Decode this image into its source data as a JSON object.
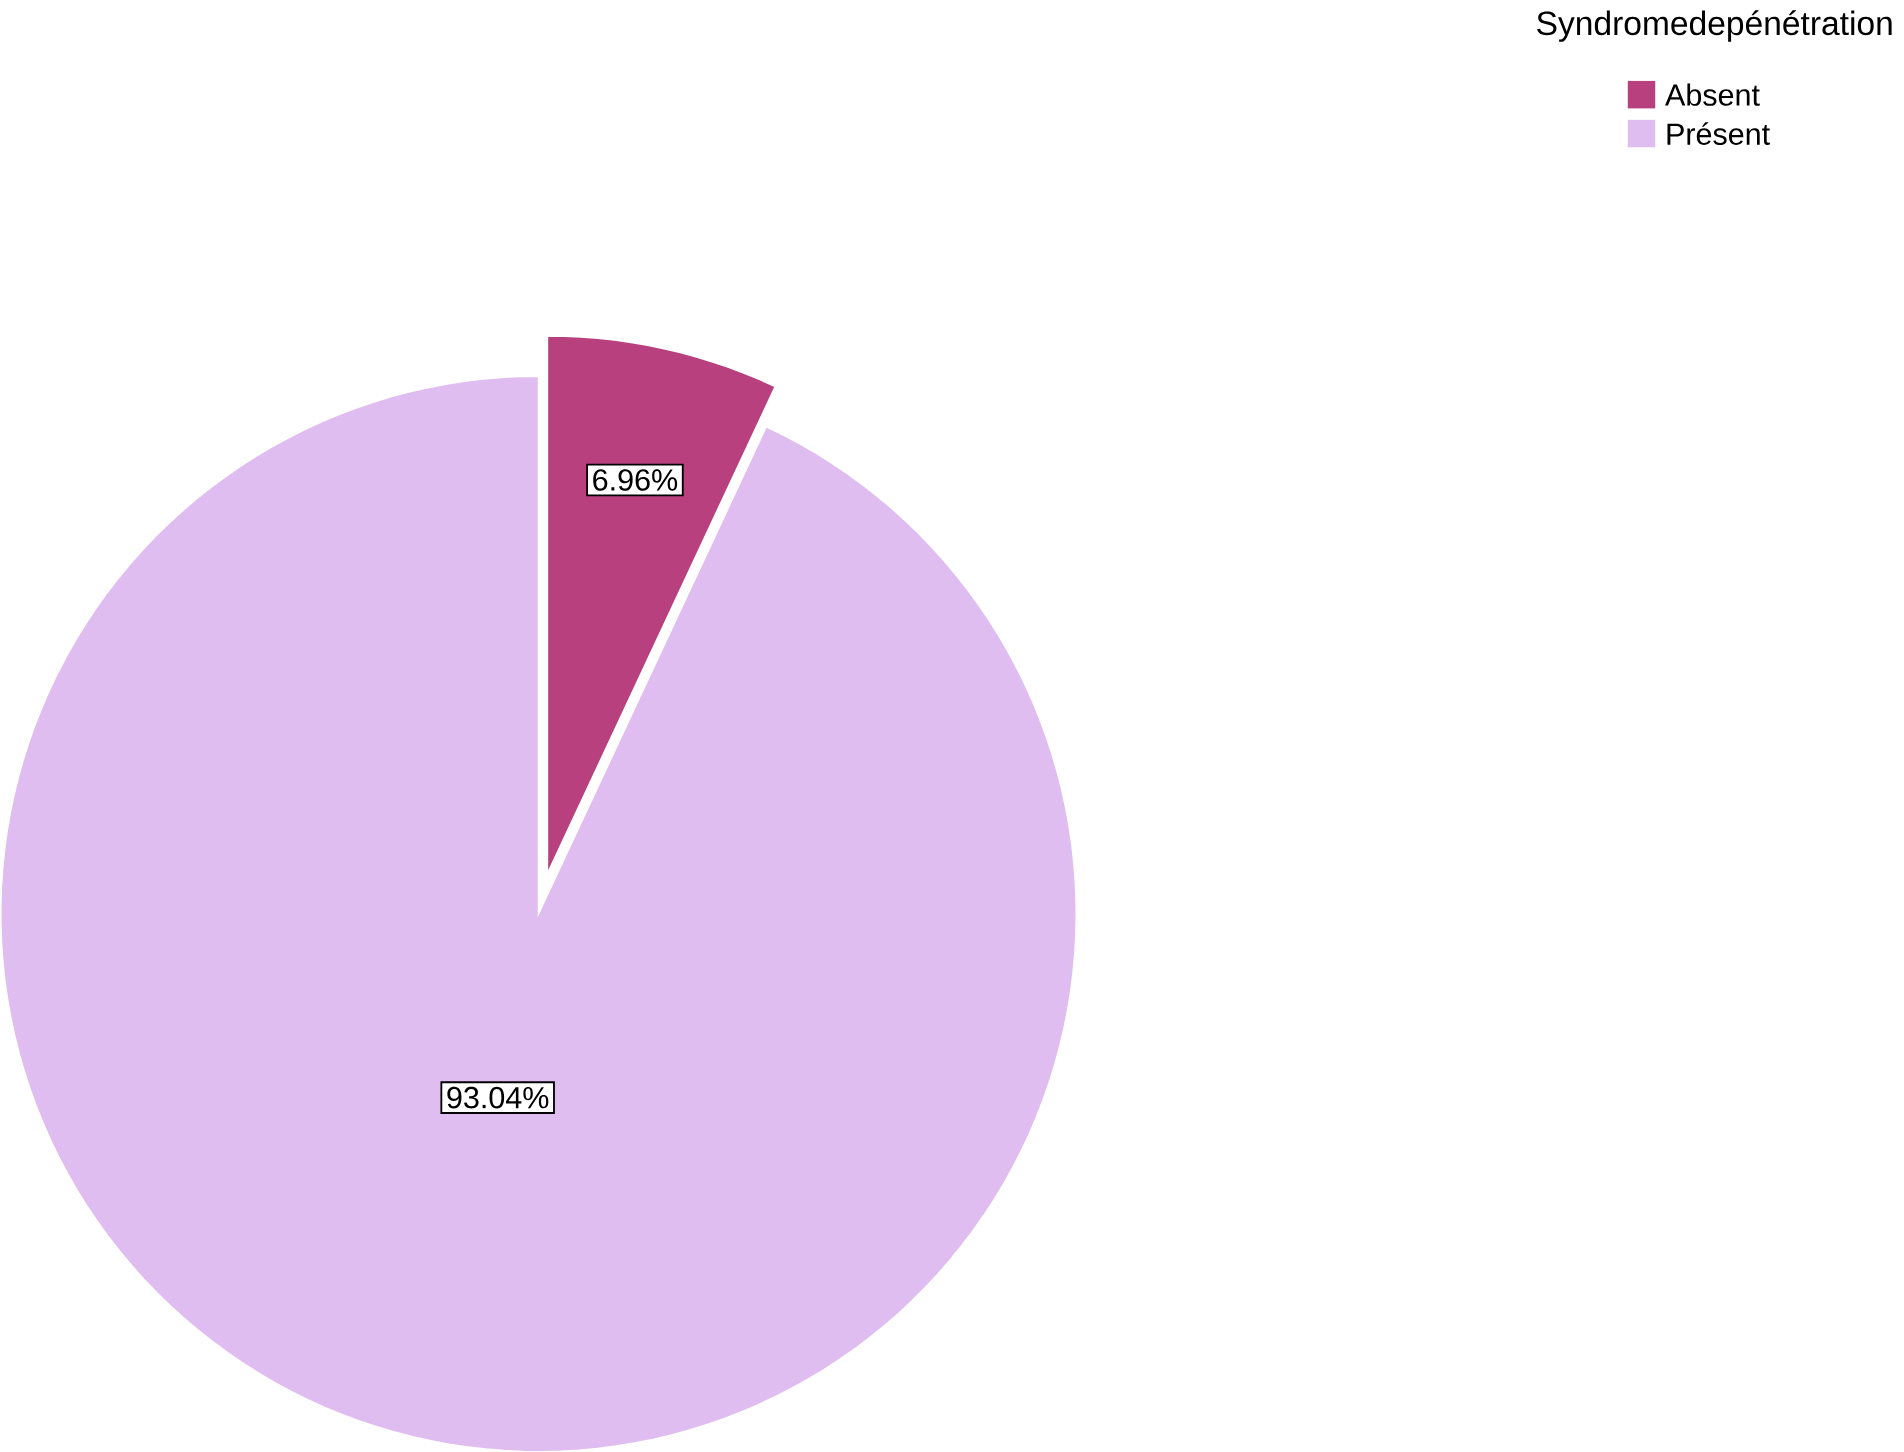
{
  "chart_data": {
    "type": "pie",
    "legend_title": "Syndromedepénétration",
    "categories": [
      "Absent",
      "Présent"
    ],
    "values": [
      6.96,
      93.04
    ],
    "colors": [
      "#b8407e",
      "#e0bdf0"
    ],
    "value_labels": [
      "6.96%",
      "93.04%"
    ],
    "legend": "top right"
  }
}
